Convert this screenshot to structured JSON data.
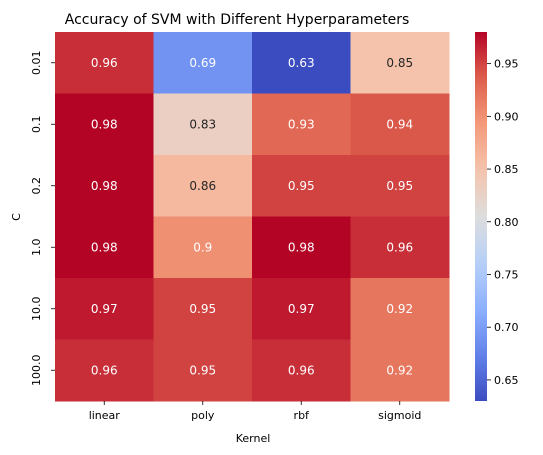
{
  "chart_data": {
    "type": "heatmap",
    "title": "Accuracy of SVM with Different Hyperparameters",
    "xlabel": "Kernel",
    "ylabel": "C",
    "x_categories": [
      "linear",
      "poly",
      "rbf",
      "sigmoid"
    ],
    "y_categories": [
      "0.01",
      "0.1",
      "0.2",
      "1.0",
      "10.0",
      "100.0"
    ],
    "values": [
      [
        0.96,
        0.69,
        0.63,
        0.85
      ],
      [
        0.98,
        0.83,
        0.93,
        0.94
      ],
      [
        0.98,
        0.86,
        0.95,
        0.95
      ],
      [
        0.98,
        0.9,
        0.98,
        0.96
      ],
      [
        0.97,
        0.95,
        0.97,
        0.92
      ],
      [
        0.96,
        0.95,
        0.96,
        0.92
      ]
    ],
    "value_labels": [
      [
        "0.96",
        "0.69",
        "0.63",
        "0.85"
      ],
      [
        "0.98",
        "0.83",
        "0.93",
        "0.94"
      ],
      [
        "0.98",
        "0.86",
        "0.95",
        "0.95"
      ],
      [
        "0.98",
        "0.9",
        "0.98",
        "0.96"
      ],
      [
        "0.97",
        "0.95",
        "0.97",
        "0.92"
      ],
      [
        "0.96",
        "0.95",
        "0.96",
        "0.92"
      ]
    ],
    "colormap": "coolwarm",
    "vmin": 0.63,
    "vmax": 0.98,
    "colorbar_ticks": [
      "0.65",
      "0.70",
      "0.75",
      "0.80",
      "0.85",
      "0.90",
      "0.95"
    ],
    "colorbar_tick_values": [
      0.65,
      0.7,
      0.75,
      0.8,
      0.85,
      0.9,
      0.95
    ]
  }
}
